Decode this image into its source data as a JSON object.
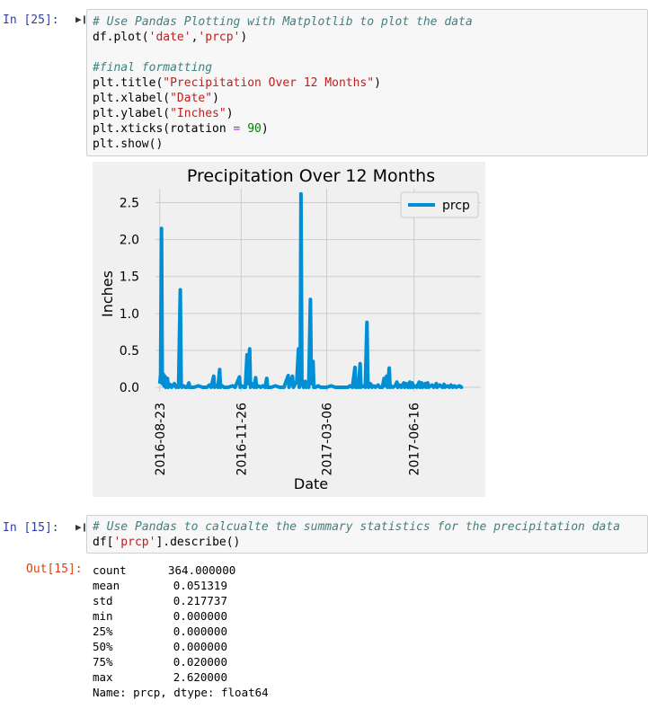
{
  "cells": [
    {
      "prompt": "In [25]:",
      "code_lines": [
        "# Use Pandas Plotting with Matplotlib to plot the data",
        "df.plot('date','prcp')",
        "",
        "#final formatting",
        "plt.title(\"Precipitation Over 12 Months\")",
        "plt.xlabel(\"Date\")",
        "plt.ylabel(\"Inches\")",
        "plt.xticks(rotation = 90)",
        "plt.show()"
      ]
    },
    {
      "prompt": "In [15]:",
      "code_lines": [
        "# Use Pandas to calcualte the summary statistics for the precipitation data",
        "df['prcp'].describe()"
      ],
      "out_prompt": "Out[15]:",
      "output": {
        "rows": [
          {
            "name": "count",
            "value": "364.000000"
          },
          {
            "name": "mean",
            "value": "0.051319"
          },
          {
            "name": "std",
            "value": "0.217737"
          },
          {
            "name": "min",
            "value": "0.000000"
          },
          {
            "name": "25%",
            "value": "0.000000"
          },
          {
            "name": "50%",
            "value": "0.000000"
          },
          {
            "name": "75%",
            "value": "0.020000"
          },
          {
            "name": "max",
            "value": "2.620000"
          }
        ],
        "footer": "Name: prcp, dtype: float64"
      }
    }
  ],
  "chart_data": {
    "type": "line",
    "title": "Precipitation Over 12 Months",
    "xlabel": "Date",
    "ylabel": "Inches",
    "x_tick_labels": [
      "2016-08-23",
      "2016-11-26",
      "2017-03-06",
      "2017-06-16"
    ],
    "x_tick_days": [
      0,
      95,
      195,
      297
    ],
    "y_ticks": [
      "0.0",
      "0.5",
      "1.0",
      "1.5",
      "2.0",
      "2.5"
    ],
    "ylim": [
      0,
      2.75
    ],
    "xlim_days": [
      -5,
      375
    ],
    "grid": true,
    "legend": {
      "entries": [
        "prcp"
      ],
      "position": "top-right"
    },
    "series": [
      {
        "name": "prcp",
        "color": "#008fd5",
        "points": [
          [
            0,
            0.05
          ],
          [
            1,
            0.17
          ],
          [
            2,
            2.15
          ],
          [
            3,
            0.05
          ],
          [
            4,
            0.18
          ],
          [
            5,
            0.02
          ],
          [
            6,
            0.15
          ],
          [
            7,
            0.0
          ],
          [
            8,
            0.03
          ],
          [
            9,
            0.12
          ],
          [
            10,
            0.0
          ],
          [
            12,
            0.04
          ],
          [
            14,
            0.0
          ],
          [
            17,
            0.05
          ],
          [
            19,
            0.0
          ],
          [
            20,
            0.02
          ],
          [
            22,
            0.0
          ],
          [
            24,
            1.32
          ],
          [
            25,
            0.05
          ],
          [
            26,
            0.0
          ],
          [
            28,
            0.02
          ],
          [
            30,
            0.0
          ],
          [
            32,
            0.0
          ],
          [
            34,
            0.06
          ],
          [
            35,
            0.0
          ],
          [
            40,
            0.0
          ],
          [
            45,
            0.02
          ],
          [
            50,
            0.0
          ],
          [
            55,
            0.0
          ],
          [
            58,
            0.03
          ],
          [
            60,
            0.0
          ],
          [
            63,
            0.15
          ],
          [
            64,
            0.0
          ],
          [
            66,
            0.02
          ],
          [
            68,
            0.0
          ],
          [
            70,
            0.24
          ],
          [
            71,
            0.0
          ],
          [
            73,
            0.02
          ],
          [
            75,
            0.0
          ],
          [
            80,
            0.0
          ],
          [
            85,
            0.02
          ],
          [
            88,
            0.0
          ],
          [
            93,
            0.14
          ],
          [
            94,
            0.0
          ],
          [
            96,
            0.02
          ],
          [
            98,
            0.0
          ],
          [
            100,
            0.0
          ],
          [
            102,
            0.44
          ],
          [
            103,
            0.05
          ],
          [
            105,
            0.52
          ],
          [
            106,
            0.0
          ],
          [
            108,
            0.05
          ],
          [
            110,
            0.0
          ],
          [
            112,
            0.13
          ],
          [
            113,
            0.0
          ],
          [
            115,
            0.02
          ],
          [
            118,
            0.0
          ],
          [
            120,
            0.02
          ],
          [
            123,
            0.0
          ],
          [
            125,
            0.12
          ],
          [
            126,
            0.0
          ],
          [
            130,
            0.0
          ],
          [
            135,
            0.02
          ],
          [
            140,
            0.0
          ],
          [
            145,
            0.0
          ],
          [
            150,
            0.16
          ],
          [
            151,
            0.0
          ],
          [
            155,
            0.15
          ],
          [
            156,
            0.0
          ],
          [
            160,
            0.08
          ],
          [
            162,
            0.52
          ],
          [
            163,
            0.0
          ],
          [
            164,
            0.05
          ],
          [
            165,
            2.62
          ],
          [
            166,
            0.1
          ],
          [
            167,
            0.05
          ],
          [
            168,
            0.0
          ],
          [
            170,
            0.08
          ],
          [
            171,
            0.0
          ],
          [
            172,
            0.02
          ],
          [
            174,
            0.0
          ],
          [
            176,
            1.19
          ],
          [
            177,
            0.05
          ],
          [
            178,
            0.1
          ],
          [
            179,
            0.35
          ],
          [
            180,
            0.0
          ],
          [
            182,
            0.0
          ],
          [
            185,
            0.02
          ],
          [
            188,
            0.0
          ],
          [
            190,
            0.0
          ],
          [
            195,
            0.0
          ],
          [
            200,
            0.02
          ],
          [
            205,
            0.0
          ],
          [
            210,
            0.0
          ],
          [
            215,
            0.0
          ],
          [
            220,
            0.0
          ],
          [
            222,
            0.02
          ],
          [
            225,
            0.0
          ],
          [
            228,
            0.27
          ],
          [
            229,
            0.0
          ],
          [
            231,
            0.05
          ],
          [
            232,
            0.0
          ],
          [
            234,
            0.32
          ],
          [
            235,
            0.0
          ],
          [
            237,
            0.02
          ],
          [
            240,
            0.0
          ],
          [
            242,
            0.88
          ],
          [
            243,
            0.05
          ],
          [
            244,
            0.0
          ],
          [
            246,
            0.05
          ],
          [
            248,
            0.0
          ],
          [
            250,
            0.02
          ],
          [
            252,
            0.0
          ],
          [
            255,
            0.03
          ],
          [
            257,
            0.0
          ],
          [
            260,
            0.0
          ],
          [
            262,
            0.12
          ],
          [
            263,
            0.02
          ],
          [
            265,
            0.15
          ],
          [
            266,
            0.0
          ],
          [
            268,
            0.26
          ],
          [
            269,
            0.0
          ],
          [
            270,
            0.02
          ],
          [
            272,
            0.0
          ],
          [
            275,
            0.02
          ],
          [
            277,
            0.07
          ],
          [
            278,
            0.0
          ],
          [
            280,
            0.03
          ],
          [
            282,
            0.0
          ],
          [
            285,
            0.06
          ],
          [
            286,
            0.0
          ],
          [
            288,
            0.05
          ],
          [
            290,
            0.0
          ],
          [
            292,
            0.07
          ],
          [
            293,
            0.0
          ],
          [
            295,
            0.06
          ],
          [
            296,
            0.0
          ],
          [
            298,
            0.02
          ],
          [
            300,
            0.0
          ],
          [
            303,
            0.07
          ],
          [
            304,
            0.0
          ],
          [
            306,
            0.06
          ],
          [
            307,
            0.0
          ],
          [
            310,
            0.05
          ],
          [
            311,
            0.0
          ],
          [
            313,
            0.06
          ],
          [
            314,
            0.0
          ],
          [
            318,
            0.03
          ],
          [
            320,
            0.0
          ],
          [
            323,
            0.05
          ],
          [
            324,
            0.0
          ],
          [
            327,
            0.03
          ],
          [
            330,
            0.0
          ],
          [
            332,
            0.04
          ],
          [
            333,
            0.0
          ],
          [
            336,
            0.02
          ],
          [
            338,
            0.0
          ],
          [
            340,
            0.03
          ],
          [
            342,
            0.0
          ],
          [
            344,
            0.02
          ],
          [
            346,
            0.0
          ],
          [
            350,
            0.02
          ],
          [
            352,
            0.0
          ],
          [
            354,
            0.01
          ]
        ]
      }
    ]
  }
}
